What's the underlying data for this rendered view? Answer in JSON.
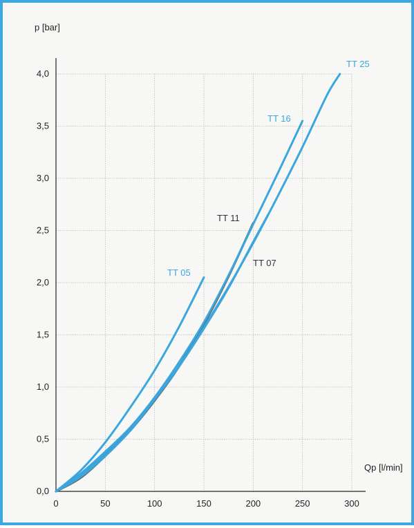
{
  "frame_color": "#3fa7df",
  "chart_data": {
    "type": "line",
    "xlabel": "Qp [l/min]",
    "ylabel": "p [bar]",
    "xlim": [
      0,
      300
    ],
    "ylim": [
      0,
      4.0
    ],
    "x_ticks": [
      0,
      50,
      100,
      150,
      200,
      250,
      300
    ],
    "y_ticks": [
      0,
      0.5,
      1.0,
      1.5,
      2.0,
      2.5,
      3.0,
      3.5,
      4.0
    ],
    "x_tick_labels": [
      "0",
      "50",
      "100",
      "150",
      "200",
      "250",
      "300"
    ],
    "y_tick_labels": [
      "0,0",
      "0,5",
      "1,0",
      "1,5",
      "2,0",
      "2,5",
      "3,0",
      "3,5",
      "4,0"
    ],
    "grid": true,
    "series": [
      {
        "name": "TT 05",
        "color": "#3aa6dd",
        "label_color": "#3aa6dd",
        "x": [
          0,
          25,
          50,
          75,
          100,
          125,
          150
        ],
        "y": [
          0,
          0.2,
          0.47,
          0.8,
          1.16,
          1.58,
          2.05
        ]
      },
      {
        "name": "TT 07",
        "color": "#3aa6dd",
        "label_color": "#333333",
        "x": [
          0,
          25,
          50,
          75,
          100,
          125,
          150,
          175,
          200,
          215
        ],
        "y": [
          0,
          0.15,
          0.36,
          0.6,
          0.88,
          1.2,
          1.56,
          1.95,
          2.39,
          2.65
        ]
      },
      {
        "name": "TT 11",
        "color": "#666666",
        "label_color": "#333333",
        "x": [
          0,
          25,
          50,
          75,
          100,
          125,
          150,
          175,
          200
        ],
        "y": [
          0,
          0.13,
          0.34,
          0.58,
          0.87,
          1.2,
          1.6,
          2.06,
          2.57
        ]
      },
      {
        "name": "TT 16",
        "color": "#3aa6dd",
        "label_color": "#3aa6dd",
        "x": [
          0,
          25,
          50,
          75,
          100,
          125,
          150,
          175,
          200,
          225,
          250
        ],
        "y": [
          0,
          0.17,
          0.38,
          0.61,
          0.9,
          1.24,
          1.62,
          2.07,
          2.56,
          3.05,
          3.55
        ]
      },
      {
        "name": "TT 25",
        "color": "#3aa6dd",
        "label_color": "#3aa6dd",
        "x": [
          0,
          25,
          50,
          75,
          100,
          125,
          150,
          175,
          200,
          225,
          250,
          275,
          288
        ],
        "y": [
          0,
          0.14,
          0.34,
          0.58,
          0.88,
          1.2,
          1.57,
          1.96,
          2.38,
          2.83,
          3.3,
          3.8,
          4.0
        ]
      }
    ]
  }
}
